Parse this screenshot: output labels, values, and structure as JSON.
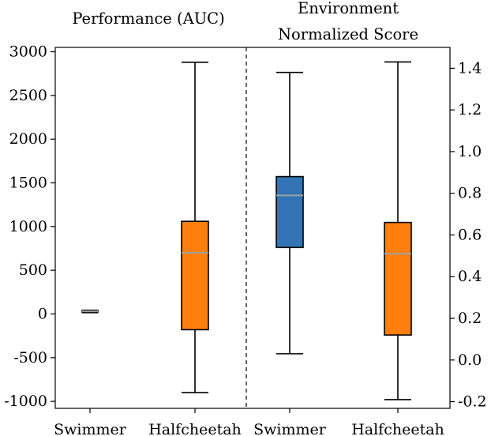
{
  "chart_data": {
    "type": "boxplot",
    "panel_divider": "dashed",
    "panels": [
      {
        "title": "Performance (AUC)",
        "title_lines": [
          "Performance (AUC)"
        ],
        "axis_side": "left",
        "ylim": [
          -1080,
          3050
        ],
        "yticks": [
          -1000,
          -500,
          0,
          500,
          1000,
          1500,
          2000,
          2500,
          3000
        ],
        "ytick_labels": [
          "-1000",
          "-500",
          "0",
          "500",
          "1000",
          "1500",
          "2000",
          "2500",
          "3000"
        ],
        "boxes": [
          {
            "category": "Swimmer",
            "whisker_low": 15,
            "q1": 20,
            "median": 30,
            "q3": 38,
            "whisker_high": 42,
            "color": "#808080"
          },
          {
            "category": "Halfcheetah",
            "whisker_low": -900,
            "q1": -180,
            "median": 700,
            "q3": 1060,
            "whisker_high": 2880,
            "color": "#ff7f0e"
          }
        ]
      },
      {
        "title": "Environment Normalized Score",
        "title_lines": [
          "Environment",
          "Normalized Score"
        ],
        "axis_side": "right",
        "ylim": [
          -0.232,
          1.5
        ],
        "yticks": [
          -0.2,
          0.0,
          0.2,
          0.4,
          0.6,
          0.8,
          1.0,
          1.2,
          1.4
        ],
        "ytick_labels": [
          "-0.2",
          "0.0",
          "0.2",
          "0.4",
          "0.6",
          "0.8",
          "1.0",
          "1.2",
          "1.4"
        ],
        "boxes": [
          {
            "category": "Swimmer",
            "whisker_low": 0.03,
            "q1": 0.54,
            "median": 0.79,
            "q3": 0.88,
            "whisker_high": 1.38,
            "color": "#3274b5"
          },
          {
            "category": "Halfcheetah",
            "whisker_low": -0.19,
            "q1": 0.12,
            "median": 0.51,
            "q3": 0.66,
            "whisker_high": 1.43,
            "color": "#ff7f0e"
          }
        ]
      }
    ]
  }
}
